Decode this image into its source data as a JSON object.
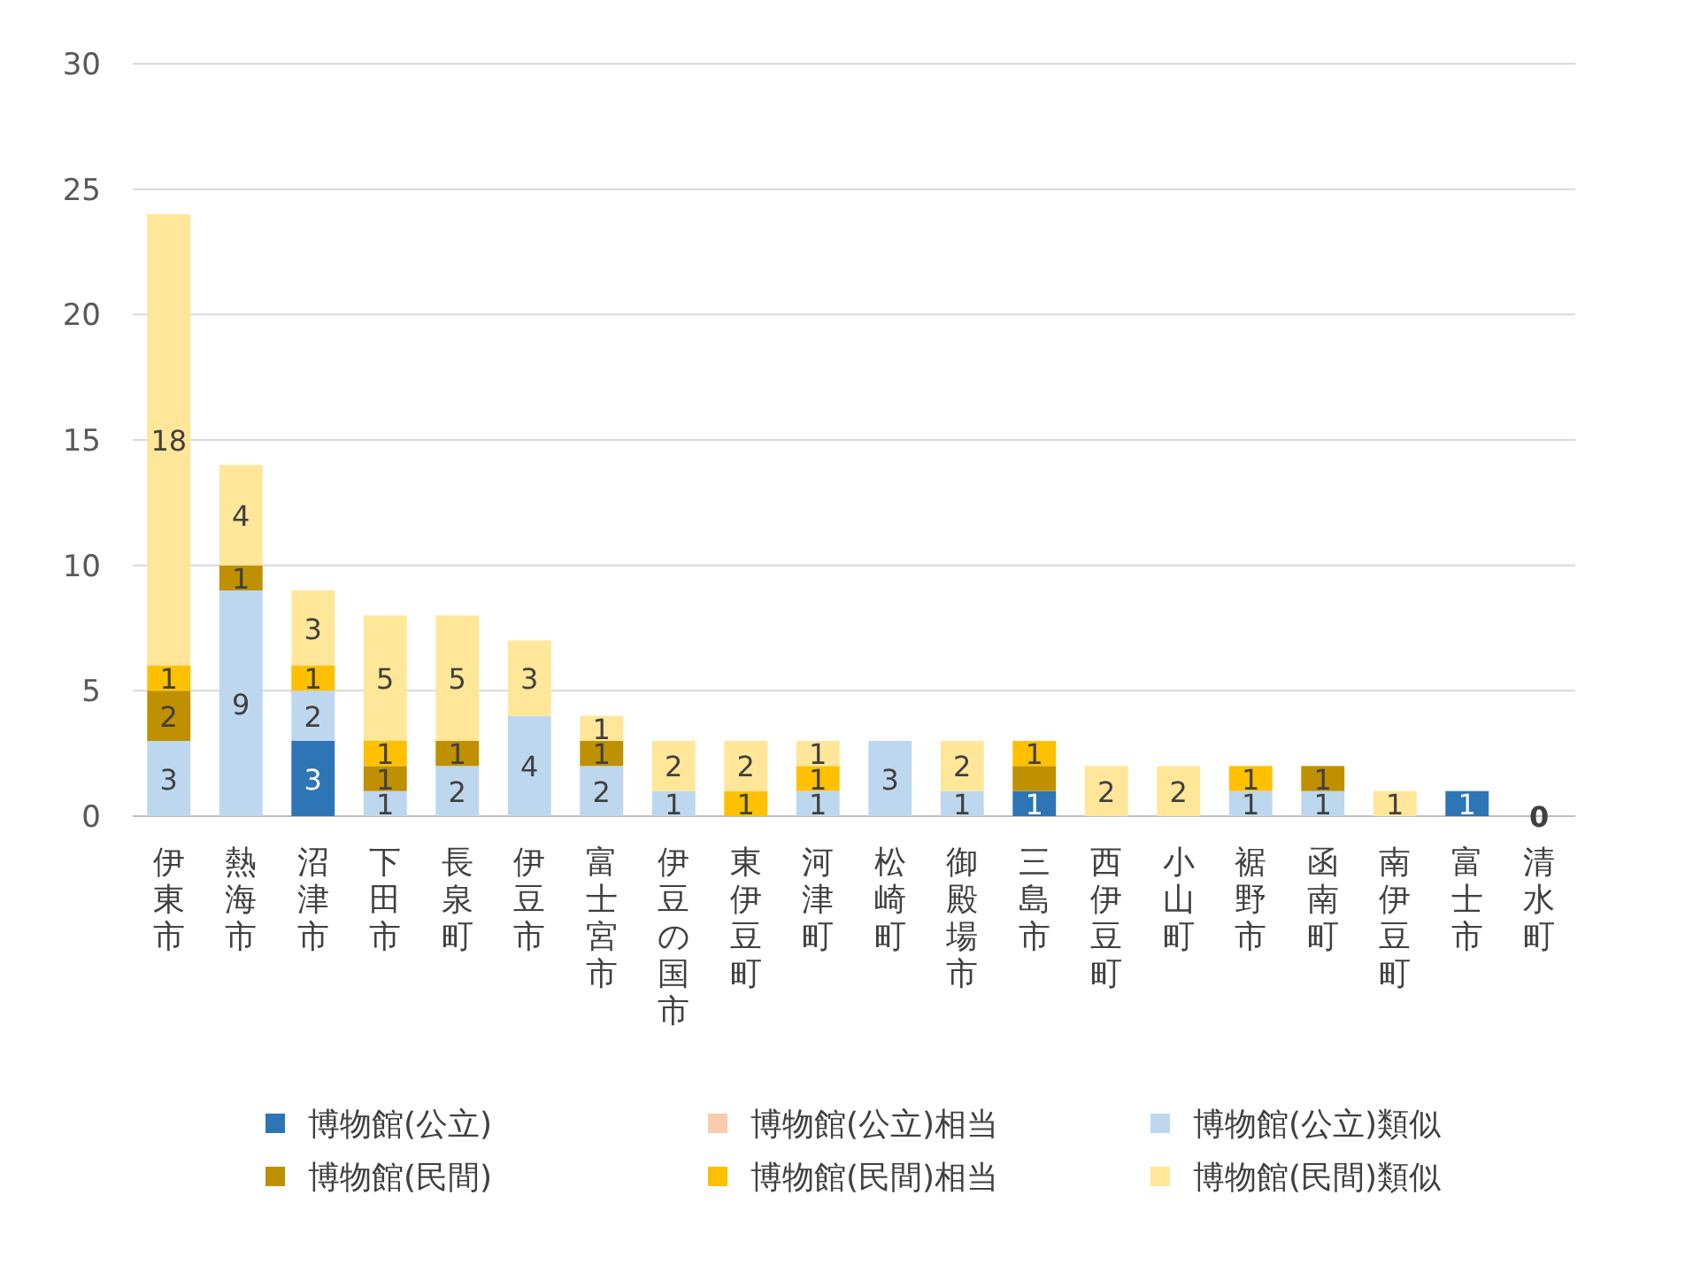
{
  "chart_data": {
    "type": "bar",
    "stacked": true,
    "categories": [
      "伊東市",
      "熱海市",
      "沼津市",
      "下田市",
      "長泉町",
      "伊豆市",
      "富士宮市",
      "伊豆の国市",
      "東伊豆町",
      "河津町",
      "松崎町",
      "御殿場市",
      "三島市",
      "西伊豆町",
      "小山町",
      "裾野市",
      "函南町",
      "南伊豆町",
      "富士市",
      "清水町"
    ],
    "series": [
      {
        "name": "博物館(公立)",
        "color": "#2e75b6",
        "values": [
          0,
          0,
          3,
          0,
          0,
          0,
          0,
          0,
          0,
          0,
          0,
          0,
          1,
          0,
          0,
          0,
          0,
          0,
          1,
          0
        ],
        "value_labels": [
          null,
          null,
          "3",
          null,
          null,
          null,
          null,
          null,
          null,
          null,
          null,
          null,
          "1",
          null,
          null,
          null,
          null,
          null,
          "1",
          "0"
        ]
      },
      {
        "name": "博物館(公立)相当",
        "color": "#f8cbad",
        "values": [
          0,
          0,
          0,
          0,
          0,
          0,
          0,
          0,
          0,
          0,
          0,
          0,
          0,
          0,
          0,
          0,
          0,
          0,
          0,
          0
        ],
        "value_labels": [
          null,
          null,
          null,
          null,
          null,
          null,
          null,
          null,
          null,
          null,
          null,
          null,
          null,
          null,
          null,
          null,
          null,
          null,
          null,
          null
        ]
      },
      {
        "name": "博物館(公立)類似",
        "color": "#bdd7ee",
        "values": [
          3,
          9,
          2,
          1,
          2,
          4,
          2,
          1,
          0,
          1,
          3,
          1,
          0,
          0,
          0,
          1,
          1,
          0,
          0,
          0
        ],
        "value_labels": [
          "3",
          "9",
          "2",
          "1",
          "2",
          "4",
          "2",
          "1",
          null,
          "1",
          "3",
          "1",
          null,
          null,
          null,
          "1",
          "1",
          null,
          null,
          null
        ]
      },
      {
        "name": "博物館(民間)",
        "color": "#bf9000",
        "values": [
          2,
          1,
          0,
          1,
          1,
          0,
          1,
          0,
          0,
          0,
          0,
          0,
          1,
          0,
          0,
          0,
          1,
          0,
          0,
          0
        ],
        "value_labels": [
          "2",
          "1",
          null,
          "1",
          "1",
          null,
          "1",
          null,
          null,
          null,
          null,
          null,
          null,
          null,
          null,
          null,
          "1",
          null,
          null,
          null
        ]
      },
      {
        "name": "博物館(民間)相当",
        "color": "#ffc000",
        "values": [
          1,
          0,
          1,
          1,
          0,
          0,
          0,
          0,
          1,
          1,
          0,
          0,
          1,
          0,
          0,
          1,
          0,
          0,
          0,
          0
        ],
        "value_labels": [
          "1",
          null,
          "1",
          "1",
          null,
          null,
          null,
          null,
          "1",
          "1",
          null,
          null,
          "1",
          null,
          null,
          "1",
          null,
          null,
          null,
          null
        ]
      },
      {
        "name": "博物館(民間)類似",
        "color": "#ffe699",
        "values": [
          18,
          4,
          3,
          5,
          5,
          3,
          1,
          2,
          2,
          1,
          0,
          2,
          0,
          2,
          2,
          0,
          0,
          1,
          0,
          0
        ],
        "value_labels": [
          "18",
          "4",
          "3",
          "5",
          "5",
          "3",
          "1",
          "2",
          "2",
          "1",
          null,
          "2",
          null,
          "2",
          "2",
          null,
          null,
          "1",
          null,
          null
        ]
      }
    ],
    "ylim": [
      0,
      30
    ],
    "yticks": [
      0,
      5,
      10,
      15,
      20,
      25,
      30
    ],
    "grid": "y",
    "legend": "bottom"
  }
}
